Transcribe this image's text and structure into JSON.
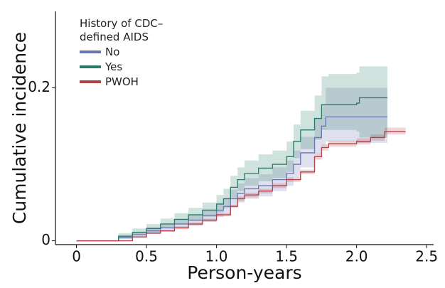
{
  "chart_data": {
    "type": "step",
    "x_label": "Person-years",
    "y_label": "Cumulative incidence",
    "legend_title": "History of CDC–defined AIDS",
    "legend": "upper left",
    "xlim": [
      -0.15,
      2.55
    ],
    "ylim": [
      -0.005,
      0.3
    ],
    "xticks": [
      0,
      0.5,
      {
        "value": 1,
        "label": "1.0"
      },
      1.5,
      {
        "value": 2,
        "label": "2.0"
      },
      2.5
    ],
    "yticks": [
      0,
      0.2
    ],
    "grid": false,
    "series": [
      {
        "name": "No",
        "color": "#6a74b0",
        "x": [
          0,
          0.27,
          0.3,
          0.4,
          0.5,
          0.6,
          0.7,
          0.8,
          0.9,
          1.0,
          1.05,
          1.1,
          1.15,
          1.2,
          1.3,
          1.4,
          1.5,
          1.55,
          1.6,
          1.7,
          1.75,
          1.78,
          2.0,
          2.22
        ],
        "values": [
          0,
          0,
          0.004,
          0.008,
          0.013,
          0.017,
          0.022,
          0.027,
          0.033,
          0.04,
          0.045,
          0.055,
          0.062,
          0.068,
          0.072,
          0.08,
          0.088,
          0.1,
          0.115,
          0.135,
          0.15,
          0.162,
          0.162,
          0.162
        ],
        "lower": [
          0,
          0,
          0.002,
          0.005,
          0.009,
          0.012,
          0.016,
          0.02,
          0.025,
          0.031,
          0.035,
          0.044,
          0.05,
          0.055,
          0.058,
          0.065,
          0.072,
          0.083,
          0.096,
          0.113,
          0.125,
          0.13,
          0.128,
          0.127
        ],
        "upper": [
          0,
          0,
          0.007,
          0.012,
          0.018,
          0.023,
          0.029,
          0.035,
          0.042,
          0.05,
          0.056,
          0.067,
          0.075,
          0.082,
          0.087,
          0.096,
          0.105,
          0.118,
          0.136,
          0.16,
          0.178,
          0.2,
          0.2,
          0.2
        ]
      },
      {
        "name": "Yes",
        "color": "#2a7a68",
        "x": [
          0,
          0.25,
          0.3,
          0.4,
          0.5,
          0.6,
          0.7,
          0.8,
          0.9,
          1.0,
          1.05,
          1.1,
          1.15,
          1.2,
          1.3,
          1.4,
          1.5,
          1.55,
          1.6,
          1.7,
          1.75,
          1.8,
          2.0,
          2.02,
          2.22
        ],
        "values": [
          0,
          0,
          0.006,
          0.011,
          0.016,
          0.022,
          0.028,
          0.034,
          0.04,
          0.048,
          0.055,
          0.07,
          0.08,
          0.088,
          0.095,
          0.1,
          0.11,
          0.13,
          0.145,
          0.16,
          0.178,
          0.178,
          0.18,
          0.187,
          0.187
        ],
        "lower": [
          0,
          0,
          0.003,
          0.007,
          0.011,
          0.016,
          0.021,
          0.026,
          0.031,
          0.037,
          0.043,
          0.056,
          0.065,
          0.072,
          0.078,
          0.082,
          0.09,
          0.108,
          0.12,
          0.132,
          0.145,
          0.145,
          0.143,
          0.135,
          0.13
        ],
        "upper": [
          0,
          0,
          0.01,
          0.016,
          0.022,
          0.029,
          0.036,
          0.043,
          0.05,
          0.06,
          0.068,
          0.085,
          0.096,
          0.105,
          0.113,
          0.118,
          0.13,
          0.152,
          0.17,
          0.19,
          0.215,
          0.218,
          0.22,
          0.228,
          0.228
        ]
      },
      {
        "name": "PWOH",
        "color": "#b0404a",
        "x": [
          0,
          0.27,
          0.4,
          0.5,
          0.6,
          0.7,
          0.8,
          0.9,
          1.0,
          1.1,
          1.15,
          1.2,
          1.3,
          1.4,
          1.5,
          1.6,
          1.7,
          1.75,
          1.8,
          2.0,
          2.1,
          2.2,
          2.35
        ],
        "values": [
          0,
          0,
          0.005,
          0.01,
          0.013,
          0.017,
          0.022,
          0.027,
          0.034,
          0.045,
          0.055,
          0.06,
          0.065,
          0.072,
          0.08,
          0.09,
          0.11,
          0.122,
          0.127,
          0.13,
          0.135,
          0.143,
          0.143
        ],
        "lower": [
          0,
          0,
          0.004,
          0.009,
          0.012,
          0.015,
          0.02,
          0.025,
          0.032,
          0.043,
          0.052,
          0.057,
          0.062,
          0.069,
          0.077,
          0.087,
          0.106,
          0.118,
          0.123,
          0.126,
          0.131,
          0.139,
          0.139
        ],
        "upper": [
          0,
          0,
          0.006,
          0.011,
          0.014,
          0.019,
          0.024,
          0.029,
          0.036,
          0.047,
          0.058,
          0.063,
          0.068,
          0.075,
          0.083,
          0.093,
          0.114,
          0.126,
          0.131,
          0.134,
          0.139,
          0.148,
          0.148
        ]
      }
    ]
  }
}
